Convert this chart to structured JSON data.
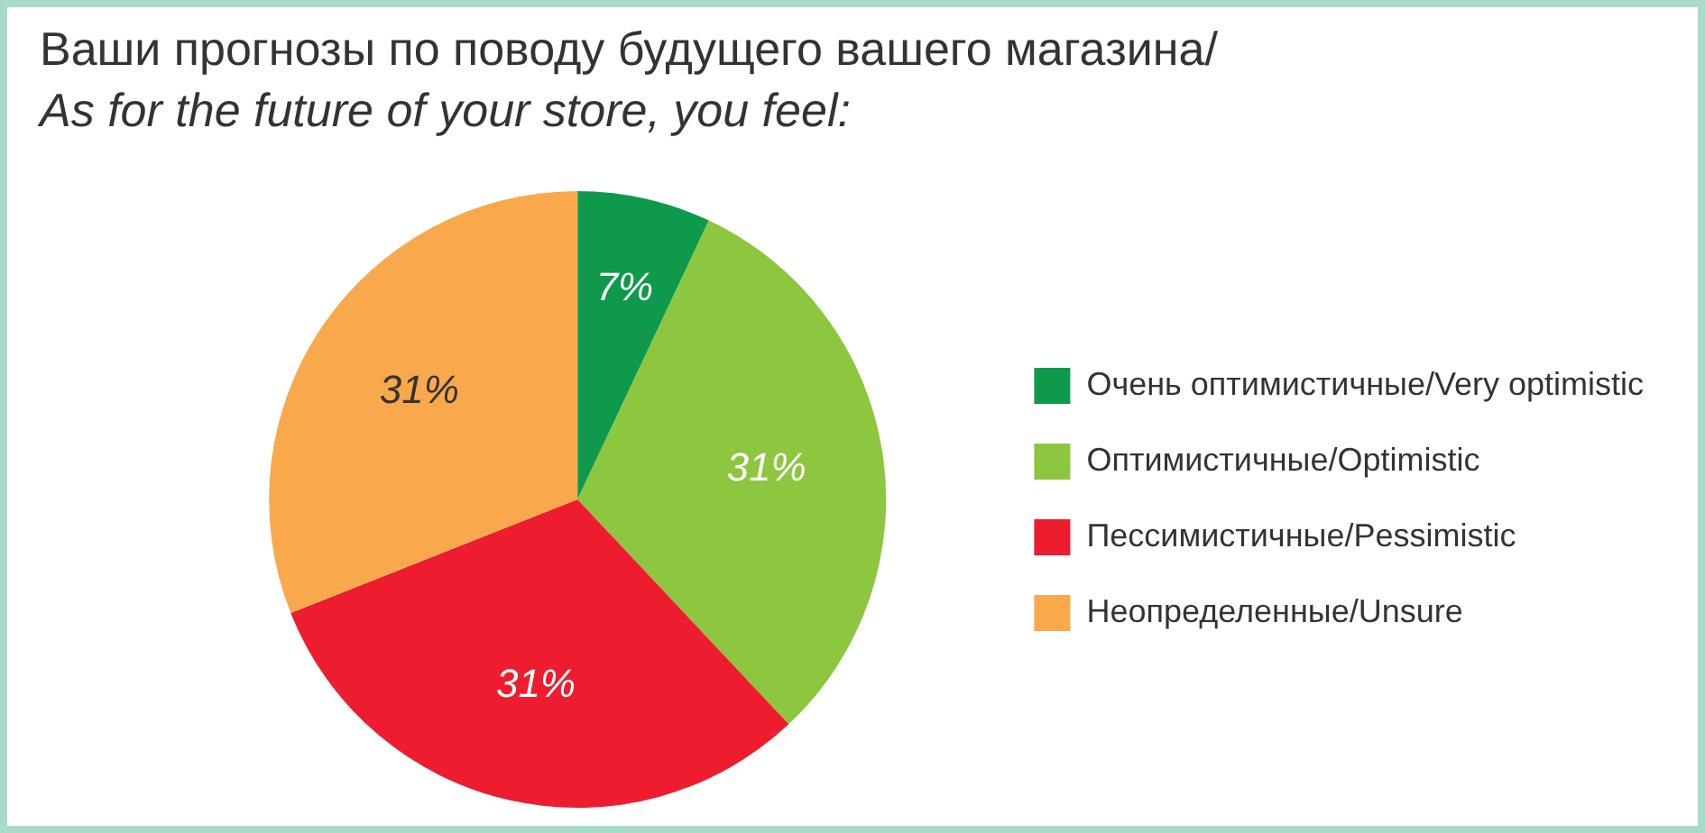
{
  "chart_data": {
    "type": "pie",
    "title": "Ваши прогнозы по поводу будущего вашего магазина/",
    "subtitle": "As for the future of your store, you feel:",
    "categories": [
      "Очень оптимистичные/Very optimistic",
      "Оптимистичные/Optimistic",
      "Пессимистичные/Pessimistic",
      "Неопределенные/Unsure"
    ],
    "values": [
      7,
      31,
      31,
      31
    ],
    "colors": [
      "#0e9a4a",
      "#8dc63f",
      "#ed1c2e",
      "#f9a94b"
    ],
    "value_labels": [
      "7%",
      "31%",
      "31%",
      "31%"
    ],
    "legend": "right"
  }
}
